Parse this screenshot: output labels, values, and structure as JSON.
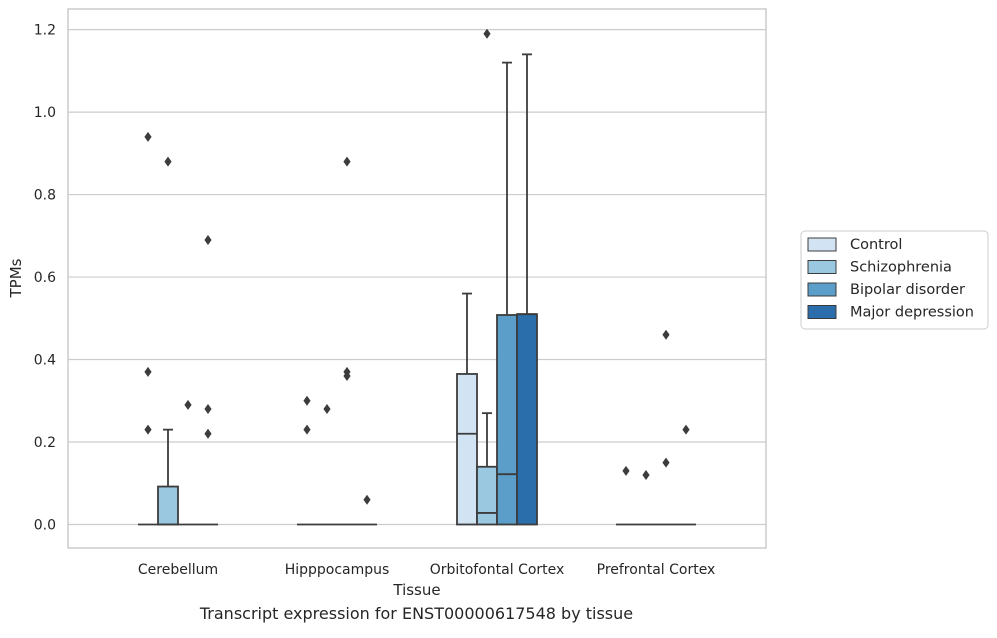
{
  "caption": "Transcript expression for ENST00000617548 by tissue",
  "chart_data": {
    "type": "boxplot",
    "xlabel": "Tissue",
    "ylabel": "TPMs",
    "ylim": [
      -0.057,
      1.25
    ],
    "yticks": [
      0.0,
      0.2,
      0.4,
      0.6,
      0.8,
      1.0,
      1.2
    ],
    "ytick_labels": [
      "0.0",
      "0.2",
      "0.4",
      "0.6",
      "0.8",
      "1.0",
      "1.2"
    ],
    "grid": true,
    "legend_position": "right",
    "categories": [
      "Cerebellum",
      "Hipppocampus",
      "Orbitofontal Cortex",
      "Prefrontal Cortex"
    ],
    "series": [
      {
        "name": "Control",
        "color": "#d2e3f3",
        "boxes": [
          {
            "min": 0.0,
            "q1": 0.0,
            "median": 0.0,
            "q3": 0.0,
            "max": 0.0,
            "outliers": [
              0.94,
              0.37,
              0.23
            ]
          },
          {
            "min": 0.0,
            "q1": 0.0,
            "median": 0.0,
            "q3": 0.0,
            "max": 0.0,
            "outliers": [
              0.3,
              0.23
            ]
          },
          {
            "min": 0.0,
            "q1": 0.0,
            "median": 0.22,
            "q3": 0.365,
            "max": 0.56,
            "outliers": []
          },
          {
            "min": 0.0,
            "q1": 0.0,
            "median": 0.0,
            "q3": 0.0,
            "max": 0.0,
            "outliers": [
              0.13
            ]
          }
        ]
      },
      {
        "name": "Schizophrenia",
        "color": "#9ac8e0",
        "boxes": [
          {
            "min": 0.0,
            "q1": 0.0,
            "median": 0.0,
            "q3": 0.092,
            "max": 0.23,
            "outliers": [
              0.88
            ]
          },
          {
            "min": 0.0,
            "q1": 0.0,
            "median": 0.0,
            "q3": 0.0,
            "max": 0.0,
            "outliers": [
              0.28
            ]
          },
          {
            "min": 0.0,
            "q1": 0.0,
            "median": 0.028,
            "q3": 0.14,
            "max": 0.27,
            "outliers": [
              1.19
            ]
          },
          {
            "min": 0.0,
            "q1": 0.0,
            "median": 0.0,
            "q3": 0.0,
            "max": 0.0,
            "outliers": [
              0.12
            ]
          }
        ]
      },
      {
        "name": "Bipolar disorder",
        "color": "#5a9ec9",
        "boxes": [
          {
            "min": 0.0,
            "q1": 0.0,
            "median": 0.0,
            "q3": 0.0,
            "max": 0.0,
            "outliers": [
              0.29
            ]
          },
          {
            "min": 0.0,
            "q1": 0.0,
            "median": 0.0,
            "q3": 0.0,
            "max": 0.0,
            "outliers": [
              0.88,
              0.37,
              0.36
            ]
          },
          {
            "min": 0.0,
            "q1": 0.0,
            "median": 0.122,
            "q3": 0.508,
            "max": 1.12,
            "outliers": []
          },
          {
            "min": 0.0,
            "q1": 0.0,
            "median": 0.0,
            "q3": 0.0,
            "max": 0.0,
            "outliers": [
              0.46,
              0.15
            ]
          }
        ]
      },
      {
        "name": "Major depression",
        "color": "#2a6fac",
        "boxes": [
          {
            "min": 0.0,
            "q1": 0.0,
            "median": 0.0,
            "q3": 0.0,
            "max": 0.0,
            "outliers": [
              0.69,
              0.28,
              0.22
            ]
          },
          {
            "min": 0.0,
            "q1": 0.0,
            "median": 0.0,
            "q3": 0.0,
            "max": 0.0,
            "outliers": [
              0.06
            ]
          },
          {
            "min": 0.0,
            "q1": 0.0,
            "median": 0.51,
            "q3": 0.51,
            "max": 1.14,
            "outliers": []
          },
          {
            "min": 0.0,
            "q1": 0.0,
            "median": 0.0,
            "q3": 0.0,
            "max": 0.0,
            "outliers": [
              0.23
            ]
          }
        ]
      }
    ]
  }
}
